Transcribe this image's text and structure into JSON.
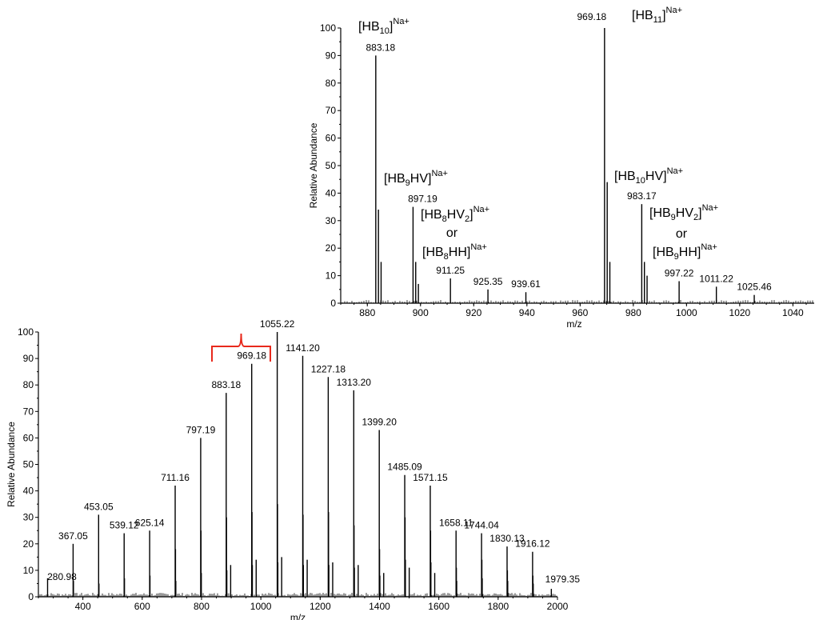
{
  "chart_data": [
    {
      "type": "line",
      "id": "full",
      "xlabel": "m/z",
      "ylabel": "Relative  Abundance",
      "xlim": [
        250,
        2000
      ],
      "ylim": [
        0,
        100
      ],
      "x_ticks": [
        400,
        600,
        800,
        1000,
        1200,
        1400,
        1600,
        1800,
        2000
      ],
      "y_ticks": [
        0,
        10,
        20,
        30,
        40,
        50,
        60,
        70,
        80,
        90,
        100
      ],
      "peaks": [
        {
          "x": 280.98,
          "y": 7,
          "label": "280.98"
        },
        {
          "x": 367.05,
          "y": 20,
          "label": "367.05"
        },
        {
          "x": 453.05,
          "y": 31,
          "label": "453.05"
        },
        {
          "x": 539.12,
          "y": 24,
          "label": "539.12"
        },
        {
          "x": 625.14,
          "y": 25,
          "label": "625.14"
        },
        {
          "x": 711.16,
          "y": 42,
          "label": "711.16"
        },
        {
          "x": 797.19,
          "y": 60,
          "label": "797.19"
        },
        {
          "x": 883.18,
          "y": 77,
          "label": "883.18"
        },
        {
          "x": 969.18,
          "y": 88,
          "label": "969.18"
        },
        {
          "x": 1055.22,
          "y": 100,
          "label": "1055.22"
        },
        {
          "x": 1141.2,
          "y": 91,
          "label": "1141.20"
        },
        {
          "x": 1227.18,
          "y": 83,
          "label": "1227.18"
        },
        {
          "x": 1313.2,
          "y": 78,
          "label": "1313.20"
        },
        {
          "x": 1399.2,
          "y": 63,
          "label": "1399.20"
        },
        {
          "x": 1485.09,
          "y": 46,
          "label": "1485.09"
        },
        {
          "x": 1571.15,
          "y": 42,
          "label": "1571.15"
        },
        {
          "x": 1658.11,
          "y": 25,
          "label": "1658.11"
        },
        {
          "x": 1744.04,
          "y": 24,
          "label": "1744.04"
        },
        {
          "x": 1830.13,
          "y": 19,
          "label": "1830.13"
        },
        {
          "x": 1916.12,
          "y": 17,
          "label": "1916.12"
        },
        {
          "x": 1979.35,
          "y": 3,
          "label": "1979.35"
        }
      ],
      "minor_peaks": [
        {
          "x": 368.2,
          "y": 6
        },
        {
          "x": 454.2,
          "y": 5
        },
        {
          "x": 540.2,
          "y": 7
        },
        {
          "x": 626.2,
          "y": 8
        },
        {
          "x": 712.2,
          "y": 18
        },
        {
          "x": 713.3,
          "y": 6
        },
        {
          "x": 798.2,
          "y": 25
        },
        {
          "x": 799.3,
          "y": 9
        },
        {
          "x": 884.2,
          "y": 30
        },
        {
          "x": 885.3,
          "y": 10
        },
        {
          "x": 898.2,
          "y": 12
        },
        {
          "x": 970.2,
          "y": 32
        },
        {
          "x": 971.3,
          "y": 12
        },
        {
          "x": 984.2,
          "y": 14
        },
        {
          "x": 1056.2,
          "y": 35
        },
        {
          "x": 1057.3,
          "y": 13
        },
        {
          "x": 1070.2,
          "y": 15
        },
        {
          "x": 1142.2,
          "y": 31
        },
        {
          "x": 1143.3,
          "y": 12
        },
        {
          "x": 1156.2,
          "y": 14
        },
        {
          "x": 1228.2,
          "y": 32
        },
        {
          "x": 1229.3,
          "y": 12
        },
        {
          "x": 1242.2,
          "y": 13
        },
        {
          "x": 1314.2,
          "y": 27
        },
        {
          "x": 1315.3,
          "y": 11
        },
        {
          "x": 1328.2,
          "y": 12
        },
        {
          "x": 1400.2,
          "y": 18
        },
        {
          "x": 1401.3,
          "y": 8
        },
        {
          "x": 1414.2,
          "y": 9
        },
        {
          "x": 1486.2,
          "y": 30
        },
        {
          "x": 1487.3,
          "y": 14
        },
        {
          "x": 1500.2,
          "y": 11
        },
        {
          "x": 1572.2,
          "y": 25
        },
        {
          "x": 1573.3,
          "y": 13
        },
        {
          "x": 1586.2,
          "y": 9
        },
        {
          "x": 1659.2,
          "y": 11
        },
        {
          "x": 1660.3,
          "y": 6
        },
        {
          "x": 1745.2,
          "y": 14
        },
        {
          "x": 1746.3,
          "y": 7
        },
        {
          "x": 1831.2,
          "y": 10
        },
        {
          "x": 1832.3,
          "y": 6
        },
        {
          "x": 1917.2,
          "y": 8
        },
        {
          "x": 1918.3,
          "y": 5
        }
      ],
      "bracket_color": "#e8291c"
    },
    {
      "type": "line",
      "id": "zoom",
      "xlabel": "m/z",
      "ylabel": "Relative Abundance",
      "xlim": [
        870,
        1048
      ],
      "ylim": [
        0,
        100
      ],
      "x_ticks": [
        880,
        900,
        920,
        940,
        960,
        980,
        1000,
        1020,
        1040
      ],
      "y_ticks": [
        0,
        10,
        20,
        30,
        40,
        50,
        60,
        70,
        80,
        90,
        100
      ],
      "peaks": [
        {
          "x": 883.18,
          "y": 90,
          "label": "883.18"
        },
        {
          "x": 884.18,
          "y": 34,
          "label": ""
        },
        {
          "x": 885.18,
          "y": 15,
          "label": ""
        },
        {
          "x": 897.19,
          "y": 35,
          "label": "897.19"
        },
        {
          "x": 898.19,
          "y": 15,
          "label": ""
        },
        {
          "x": 899.2,
          "y": 7,
          "label": ""
        },
        {
          "x": 911.25,
          "y": 9,
          "label": "911.25"
        },
        {
          "x": 925.35,
          "y": 5,
          "label": "925.35"
        },
        {
          "x": 939.61,
          "y": 4,
          "label": "939.61"
        },
        {
          "x": 969.18,
          "y": 100,
          "label": "969.18"
        },
        {
          "x": 970.18,
          "y": 44,
          "label": ""
        },
        {
          "x": 971.18,
          "y": 15,
          "label": ""
        },
        {
          "x": 983.17,
          "y": 36,
          "label": "983.17"
        },
        {
          "x": 984.17,
          "y": 15,
          "label": ""
        },
        {
          "x": 985.17,
          "y": 10,
          "label": ""
        },
        {
          "x": 997.22,
          "y": 8,
          "label": "997.22"
        },
        {
          "x": 1011.22,
          "y": 6,
          "label": "1011.22"
        },
        {
          "x": 1025.46,
          "y": 3,
          "label": "1025.46"
        }
      ],
      "annotations": [
        {
          "text": "[HB<sub>10</sub>]<sup>Na+</sup>"
        },
        {
          "text": "[HB<sub>11</sub>]<sup>Na+</sup>"
        },
        {
          "text": "[HB<sub>9</sub>HV]<sup>Na+</sup>"
        },
        {
          "text": "[HB<sub>8</sub>HV<sub>2</sub>]<sup>Na+</sup>"
        },
        {
          "text": "or"
        },
        {
          "text": "[HB<sub>8</sub>HH]<sup>Na+</sup>"
        },
        {
          "text": "[HB<sub>10</sub>HV]<sup>Na+</sup>"
        },
        {
          "text": "[HB<sub>9</sub>HV<sub>2</sub>]<sup>Na+</sup>"
        },
        {
          "text": "or"
        },
        {
          "text": "[HB<sub>9</sub>HH]<sup>Na+</sup>"
        }
      ]
    }
  ]
}
